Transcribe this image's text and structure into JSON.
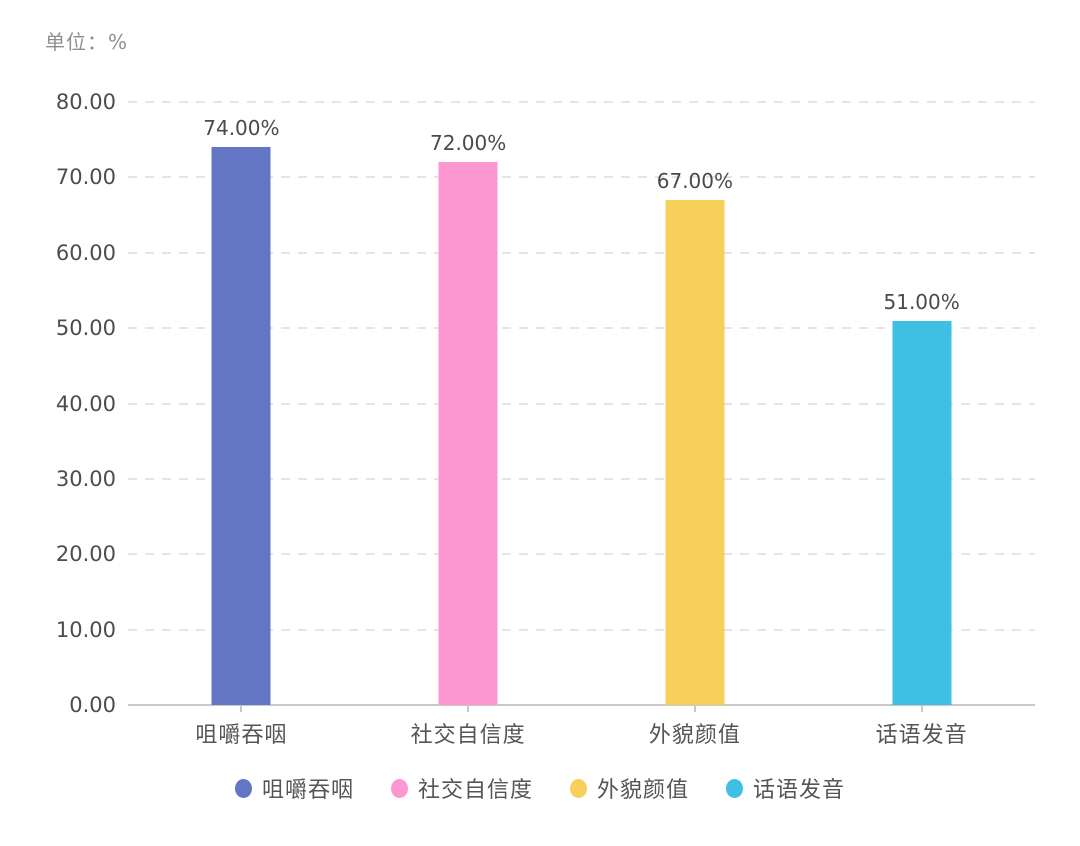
{
  "unit_label": "单位：%",
  "chart_data": {
    "type": "bar",
    "title": "",
    "xlabel": "",
    "ylabel": "单位：%",
    "categories": [
      "咀嚼吞咽",
      "社交自信度",
      "外貌颜值",
      "话语发音"
    ],
    "values": [
      74,
      72,
      67,
      51
    ],
    "value_labels": [
      "74.00%",
      "72.00%",
      "67.00%",
      "51.00%"
    ],
    "bar_colors": [
      "#6276C4",
      "#FD97D2",
      "#F7D05C",
      "#3DC0E4"
    ],
    "y_ticks": [
      "80.00",
      "70.00",
      "60.00",
      "50.00",
      "40.00",
      "30.00",
      "20.00",
      "10.00",
      "0.00"
    ],
    "y_tick_values": [
      80,
      70,
      60,
      50,
      40,
      30,
      20,
      10,
      0
    ],
    "ylim": [
      0,
      80
    ],
    "grid": true,
    "grid_style": "dashed",
    "legend_position": "bottom",
    "legend": [
      {
        "label": "咀嚼吞咽",
        "color": "#6276C4"
      },
      {
        "label": "社交自信度",
        "color": "#FD97D2"
      },
      {
        "label": "外貌颜值",
        "color": "#F7D05C"
      },
      {
        "label": "话语发音",
        "color": "#3DC0E4"
      }
    ],
    "colors": {
      "grid_line": "#e5e5e5",
      "axis_line": "#c8c8c8",
      "axis_text": "#4d4d4d",
      "value_text": "#4a4a4a",
      "category_text": "#555555",
      "unit_text": "#8f8f8f"
    }
  }
}
